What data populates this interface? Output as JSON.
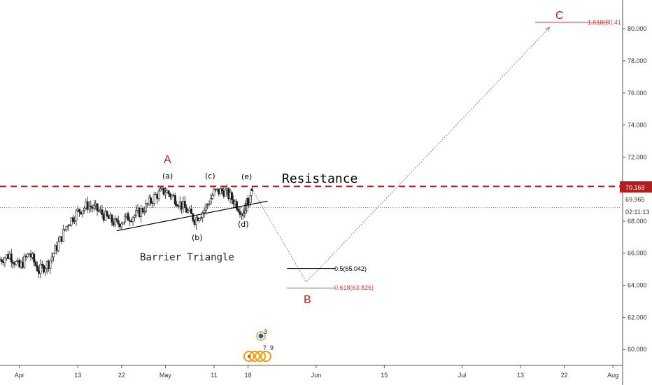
{
  "chart_data": {
    "type": "candlestick",
    "y_axis": {
      "range": [
        59.0,
        81.8
      ],
      "ticks": [
        "60.000",
        "62.000",
        "64.000",
        "66.000",
        "68.000",
        "70.000",
        "72.000",
        "74.000",
        "76.000",
        "78.000",
        "80.000"
      ],
      "tick_values": [
        60,
        62,
        64,
        66,
        68,
        70,
        72,
        74,
        76,
        78,
        80
      ]
    },
    "x_axis": {
      "range": [
        "2020-03-28",
        "2020-08-03"
      ],
      "ticks": [
        {
          "label": "Apr",
          "date": "2020-04-01"
        },
        {
          "label": "13",
          "date": "2020-04-13"
        },
        {
          "label": "22",
          "date": "2020-04-22"
        },
        {
          "label": "May",
          "date": "2020-05-01"
        },
        {
          "label": "11",
          "date": "2020-05-11"
        },
        {
          "label": "18",
          "date": "2020-05-18"
        },
        {
          "label": "Jun",
          "date": "2020-06-01"
        },
        {
          "label": "15",
          "date": "2020-06-15"
        },
        {
          "label": "Jul",
          "date": "2020-07-01"
        },
        {
          "label": "13",
          "date": "2020-07-13"
        },
        {
          "label": "22",
          "date": "2020-07-22"
        },
        {
          "label": "Aug",
          "date": "2020-08-01"
        }
      ]
    },
    "price_path": [
      [
        "2020-03-28",
        65.6
      ],
      [
        "2020-03-30",
        65.9
      ],
      [
        "2020-04-01",
        65.1
      ],
      [
        "2020-04-03",
        66.0
      ],
      [
        "2020-04-05",
        64.9
      ],
      [
        "2020-04-07",
        65.4
      ],
      [
        "2020-04-09",
        66.6
      ],
      [
        "2020-04-11",
        67.9
      ],
      [
        "2020-04-13",
        68.6
      ],
      [
        "2020-04-15",
        69.0
      ],
      [
        "2020-04-17",
        68.7
      ],
      [
        "2020-04-19",
        68.2
      ],
      [
        "2020-04-21",
        67.8
      ],
      [
        "2020-04-23",
        68.2
      ],
      [
        "2020-04-25",
        68.4
      ],
      [
        "2020-04-27",
        68.9
      ],
      [
        "2020-04-29",
        69.6
      ],
      [
        "2020-05-01",
        69.9
      ],
      [
        "2020-05-03",
        69.4
      ],
      [
        "2020-05-05",
        68.8
      ],
      [
        "2020-05-07",
        68.1
      ],
      [
        "2020-05-09",
        68.7
      ],
      [
        "2020-05-11",
        69.8
      ],
      [
        "2020-05-13",
        69.9
      ],
      [
        "2020-05-15",
        69.3
      ],
      [
        "2020-05-17",
        68.5
      ],
      [
        "2020-05-18",
        69.2
      ],
      [
        "2020-05-19",
        69.9
      ]
    ],
    "last_price": "70.169",
    "second_price": "69.965",
    "countdown": "02:11:13",
    "resistance_level": 70.169,
    "annotations": {
      "title_resistance": "Resistance",
      "title_triangle": "Barrier Triangle",
      "major_A": "A",
      "major_B": "B",
      "major_C": "C",
      "sub_a": "(a)",
      "sub_b": "(b)",
      "sub_c": "(c)",
      "sub_d": "(d)",
      "sub_e": "(e)",
      "fib_05": "0.5(65.042)",
      "fib_0618": "0.618(63.826)",
      "fib_1618": "1.618(80.41"
    },
    "projection": [
      [
        "2020-05-19",
        69.9
      ],
      [
        "2020-05-30",
        64.2
      ],
      [
        "2020-07-19",
        80.1
      ]
    ],
    "event_badges": [
      "3",
      "7",
      "9"
    ],
    "colors": {
      "resistance": "#b71c1c",
      "fib_red": "#e53935",
      "fib_black": "#000000",
      "candle": "#1a1a1a",
      "price_badge": "#b71c1c"
    }
  }
}
